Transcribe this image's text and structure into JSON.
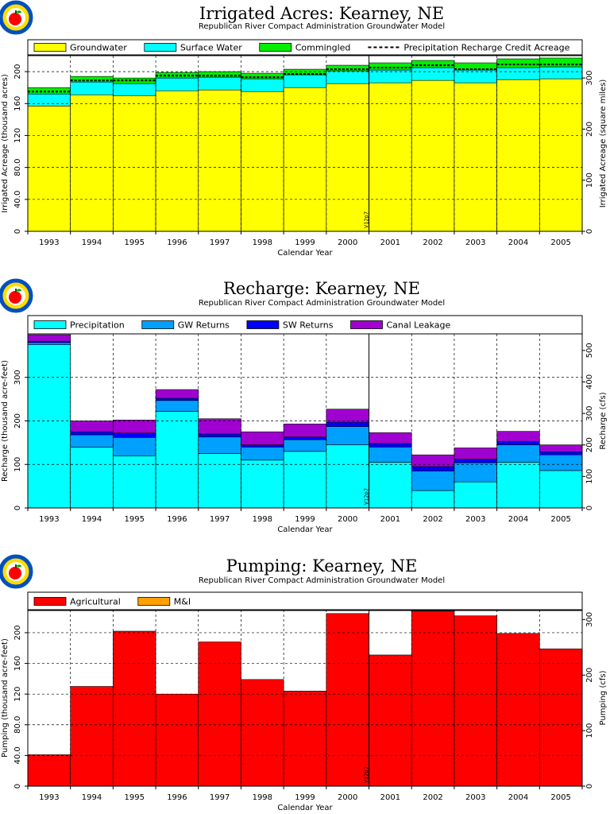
{
  "colors": {
    "groundwater": "#ffff00",
    "surface_water": "#00ffff",
    "commingled": "#00ee00",
    "precipitation": "#00ffff",
    "gw_returns": "#00a0ff",
    "sw_returns": "#0000ff",
    "canal_leakage": "#a000d0",
    "agricultural": "#ff0000",
    "mi": "#ffa000",
    "logo_ring": "#0050c0",
    "logo_apple": "#ff0000",
    "logo_bg": "#ffdd00"
  },
  "logo_icon": "apple-seal-icon",
  "years": [
    "1993",
    "1994",
    "1995",
    "1996",
    "1997",
    "1998",
    "1999",
    "2000",
    "2001",
    "2002",
    "2003",
    "2004",
    "2005"
  ],
  "marker_label": "V12p7",
  "marker_after_year": "2000",
  "x_axis_label": "Calendar Year",
  "chart_data": [
    {
      "type": "bar",
      "stacked": true,
      "title": "Irrigated Acres: Kearney, NE",
      "subtitle": "Republican River Compact Administration Groundwater Model",
      "xlabel": "Calendar Year",
      "ylabel": "Irrigated Acreage (thousand acres)",
      "ylabel_right": "Irrigated Acreage (square miles)",
      "ylim": [
        0,
        220
      ],
      "yticks": [
        0,
        40,
        80,
        120,
        160,
        200
      ],
      "ytick_labels": [
        "0",
        "40.0",
        "80.0",
        "120",
        "160",
        "200"
      ],
      "ylim_right": [
        0,
        343.75
      ],
      "yticks_right": [
        0,
        100,
        200,
        300
      ],
      "grid": true,
      "legend_position": "top",
      "categories": [
        "1993",
        "1994",
        "1995",
        "1996",
        "1997",
        "1998",
        "1999",
        "2000",
        "2001",
        "2002",
        "2003",
        "2004",
        "2005"
      ],
      "series": [
        {
          "name": "Groundwater",
          "color_key": "groundwater",
          "values": [
            157,
            171,
            170,
            176,
            177,
            175,
            180,
            185,
            186,
            189,
            186,
            190,
            191
          ]
        },
        {
          "name": "Surface Water",
          "color_key": "surface_water",
          "values": [
            15,
            16,
            15,
            16,
            16,
            16,
            16,
            16,
            16,
            16,
            16,
            15,
            15
          ]
        },
        {
          "name": "Commingled",
          "color_key": "commingled",
          "values": [
            8,
            7,
            7,
            7,
            7,
            7,
            7,
            7,
            9,
            9,
            9,
            11,
            11
          ]
        }
      ],
      "line_series": {
        "name": "Precipitation Recharge Credit Acreage",
        "values": [
          175,
          189,
          189,
          195,
          195,
          193,
          197,
          203,
          205,
          208,
          203,
          209,
          209
        ]
      }
    },
    {
      "type": "bar",
      "stacked": true,
      "title": "Recharge: Kearney, NE",
      "subtitle": "Republican River Compact Administration Groundwater Model",
      "xlabel": "Calendar Year",
      "ylabel": "Recharge (thousand acre-feet)",
      "ylabel_right": "Recharge (cfs)",
      "ylim": [
        0,
        400
      ],
      "yticks": [
        0,
        100,
        200,
        300
      ],
      "ytick_labels": [
        "0",
        "100",
        "200",
        "300"
      ],
      "ylim_right": [
        0,
        552.5
      ],
      "yticks_right": [
        0,
        100,
        200,
        300,
        400,
        500
      ],
      "grid": true,
      "legend_position": "top",
      "categories": [
        "1993",
        "1994",
        "1995",
        "1996",
        "1997",
        "1998",
        "1999",
        "2000",
        "2001",
        "2002",
        "2003",
        "2004",
        "2005"
      ],
      "series": [
        {
          "name": "Precipitation",
          "color_key": "precipitation",
          "values": [
            375,
            140,
            120,
            222,
            125,
            110,
            130,
            145,
            105,
            40,
            60,
            105,
            86
          ]
        },
        {
          "name": "GW Returns",
          "color_key": "gw_returns",
          "values": [
            5,
            28,
            42,
            25,
            38,
            30,
            27,
            42,
            35,
            45,
            44,
            40,
            36
          ]
        },
        {
          "name": "SW Returns",
          "color_key": "sw_returns",
          "values": [
            3,
            7,
            10,
            5,
            7,
            5,
            6,
            10,
            8,
            10,
            8,
            8,
            7
          ]
        },
        {
          "name": "Canal Leakage",
          "color_key": "canal_leakage",
          "values": [
            15,
            25,
            30,
            20,
            35,
            30,
            30,
            30,
            25,
            27,
            26,
            23,
            16
          ]
        }
      ]
    },
    {
      "type": "bar",
      "stacked": true,
      "title": "Pumping: Kearney, NE",
      "subtitle": "Republican River Compact Administration Groundwater Model",
      "xlabel": "Calendar Year",
      "ylabel": "Pumping (thousand acre-feet)",
      "ylabel_right": "Pumping (cfs)",
      "ylim": [
        0,
        230
      ],
      "yticks": [
        0,
        40,
        80,
        120,
        160,
        200
      ],
      "ytick_labels": [
        "0",
        "40.0",
        "80.0",
        "120",
        "160",
        "200"
      ],
      "ylim_right": [
        0,
        317.7
      ],
      "yticks_right": [
        0,
        100,
        200,
        300
      ],
      "grid": true,
      "legend_position": "top",
      "categories": [
        "1993",
        "1994",
        "1995",
        "1996",
        "1997",
        "1998",
        "1999",
        "2000",
        "2001",
        "2002",
        "2003",
        "2004",
        "2005"
      ],
      "series": [
        {
          "name": "Agricultural",
          "color_key": "agricultural",
          "values": [
            41,
            130,
            202,
            120,
            188,
            139,
            124,
            225,
            171,
            228,
            222,
            199,
            179
          ]
        },
        {
          "name": "M&I",
          "color_key": "mi",
          "values": [
            0,
            0,
            0,
            0,
            0,
            0,
            0,
            0,
            0,
            0,
            0,
            0,
            0
          ]
        }
      ]
    }
  ]
}
